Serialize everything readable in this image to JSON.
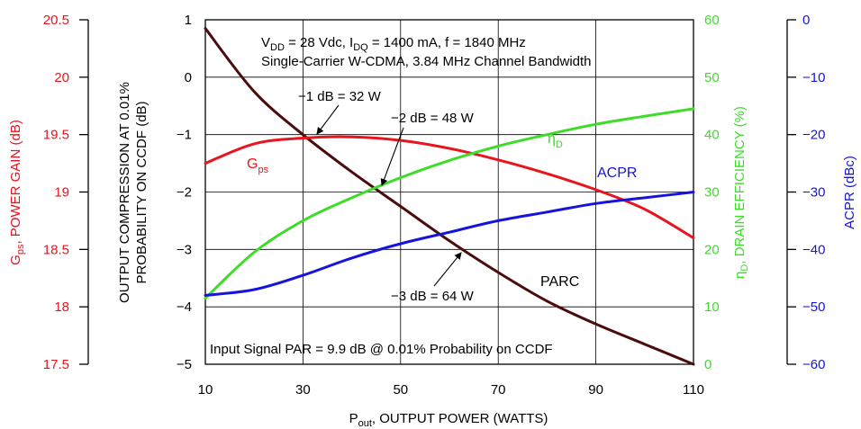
{
  "chart_data": {
    "type": "line",
    "x": [
      10,
      20,
      30,
      40,
      50,
      60,
      70,
      80,
      90,
      100,
      110
    ],
    "xlabel": {
      "main": "P",
      "sub": "out",
      "rest": ", OUTPUT POWER (WATTS)"
    },
    "xticks": [
      "10",
      "30",
      "50",
      "70",
      "90",
      "110"
    ],
    "xlim": [
      10,
      110
    ],
    "axes": {
      "gain": {
        "label": {
          "main": "G",
          "sub": "ps",
          "rest": ", POWER GAIN (dB)"
        },
        "ticks": [
          "20.5",
          "20",
          "19.5",
          "19",
          "18.5",
          "18",
          "17.5"
        ],
        "ylim": [
          17.5,
          20.5
        ],
        "color": "#e8141e"
      },
      "compression": {
        "label_line1": "OUTPUT COMPRESSION AT 0.01%",
        "label_line2": "PROBABILITY ON CCDF (dB)",
        "ticks": [
          "1",
          "0",
          "-1",
          "-2",
          "-3",
          "-4",
          "-5"
        ],
        "ylim": [
          -5,
          1
        ],
        "color": "#2a0a08"
      },
      "efficiency": {
        "label": {
          "main": "η",
          "sub": "D",
          "rest": ", DRAIN EFFICIENCY (%)"
        },
        "ticks": [
          "60",
          "50",
          "40",
          "30",
          "20",
          "10",
          "0"
        ],
        "ylim": [
          0,
          60
        ],
        "color": "#3cdc28"
      },
      "acpr": {
        "label": "ACPR (dBc)",
        "ticks": [
          "0",
          "−10",
          "−20",
          "−30",
          "−40",
          "−50",
          "−60"
        ],
        "ylim": [
          -60,
          0
        ],
        "color": "#1414dc"
      }
    },
    "series": [
      {
        "name": "PARC",
        "axis": "compression",
        "color": "#4a0c0c",
        "values": [
          0.85,
          -0.25,
          -1.0,
          -1.65,
          -2.25,
          -2.85,
          -3.4,
          -3.9,
          -4.3,
          -4.65,
          -5.0
        ]
      },
      {
        "name": "Gps",
        "axis": "gain",
        "color": "#e8141e",
        "values": [
          19.25,
          19.42,
          19.47,
          19.48,
          19.45,
          19.38,
          19.28,
          19.16,
          19.02,
          18.85,
          18.6
        ]
      },
      {
        "name": "ηD",
        "axis": "efficiency",
        "color": "#3cdc28",
        "values": [
          11.5,
          19.5,
          25,
          29,
          32.5,
          35.5,
          38,
          40,
          41.8,
          43.2,
          44.5
        ]
      },
      {
        "name": "ACPR",
        "axis": "acpr",
        "color": "#1414dc",
        "values": [
          -48,
          -47,
          -44.5,
          -41.5,
          -39,
          -37,
          -35,
          -33.5,
          -32,
          -31,
          -30
        ]
      }
    ],
    "series_labels": {
      "gps": {
        "main": "G",
        "sub": "ps"
      },
      "eta": {
        "main": "η",
        "sub": "D"
      },
      "acpr": "ACPR",
      "parc": "PARC"
    },
    "annotations": {
      "conditions_line1": {
        "a": "V",
        "a_sub": "DD",
        "b": " = 28 Vdc, I",
        "b_sub": "DQ",
        "c": " = 1400 mA, f = 1840 MHz"
      },
      "conditions_line2": "Single-Carrier W-CDMA, 3.84 MHz Channel Bandwidth",
      "input_signal": "Input Signal PAR = 9.9 dB @ 0.01% Probability on CCDF",
      "p1": {
        "text": "−1 dB = 32 W",
        "x": 32,
        "y": -1.05
      },
      "p2": {
        "text": "−2 dB = 48 W",
        "x": 48,
        "y": -2.0
      },
      "p3": {
        "text": "−3 dB = 64 W",
        "x": 64,
        "y": -2.95
      }
    },
    "grid": true
  }
}
